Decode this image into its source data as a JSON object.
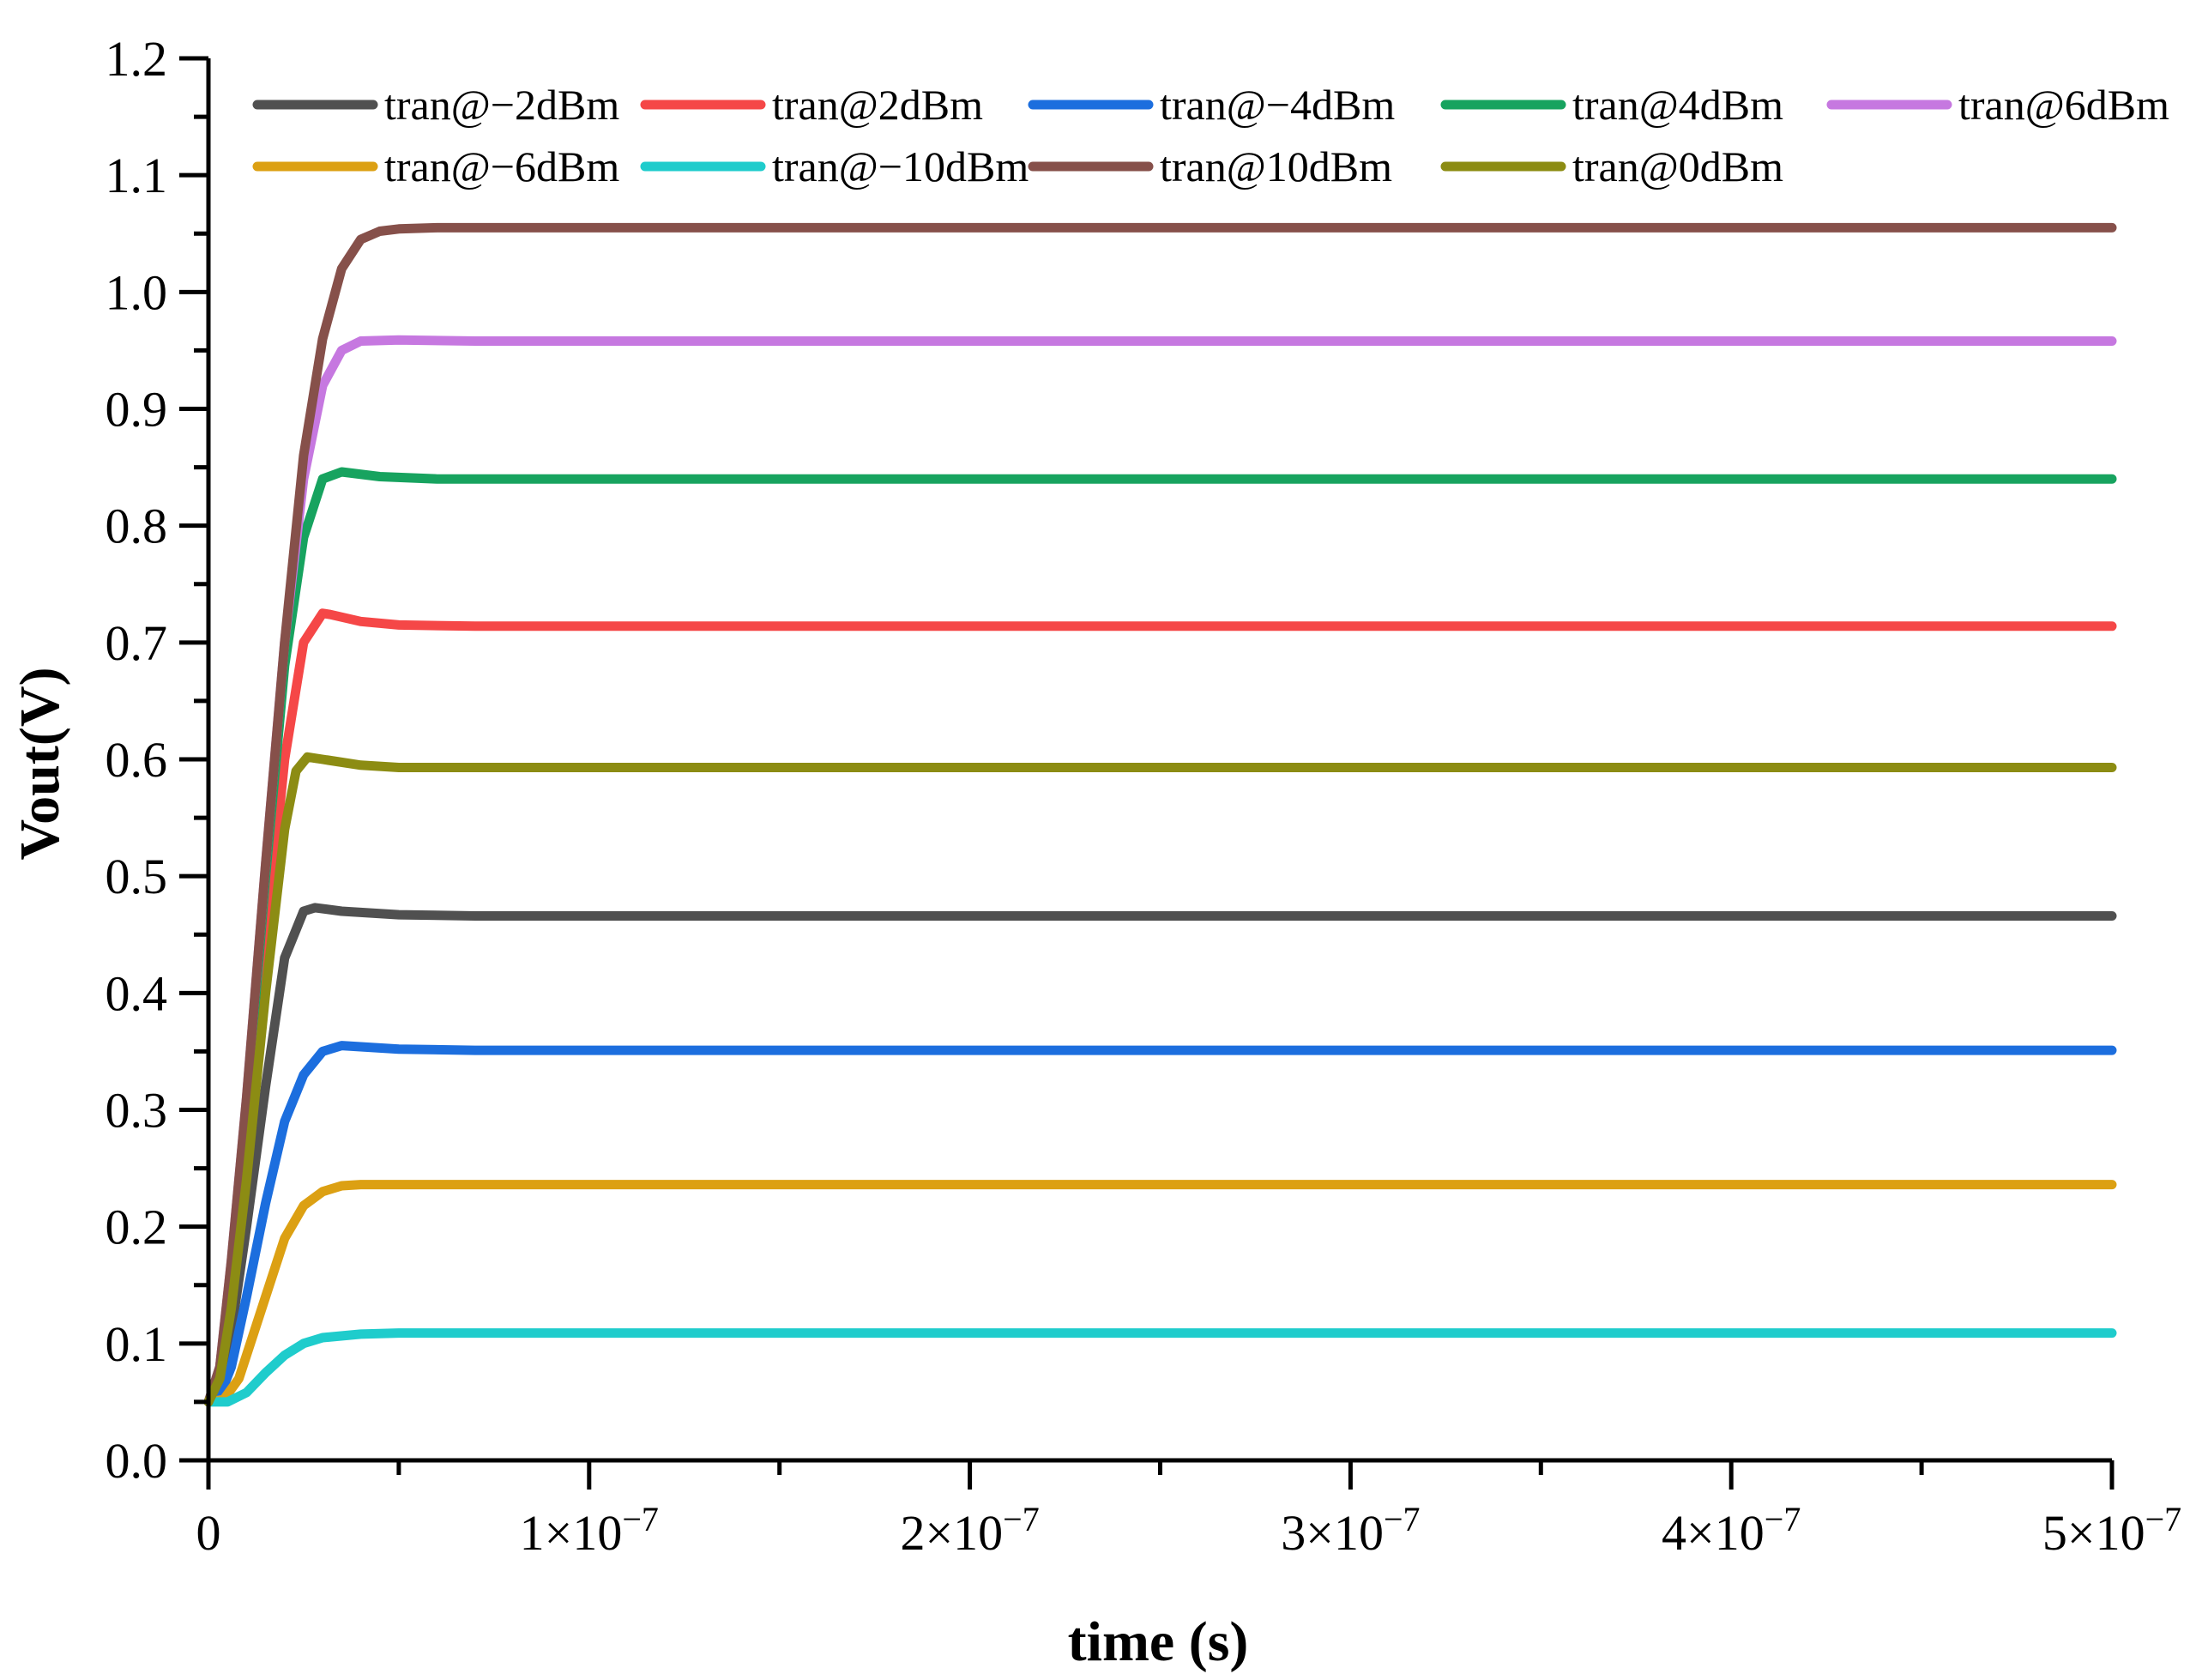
{
  "chart_data": {
    "type": "line",
    "title": "",
    "xlabel": "time (s)",
    "ylabel": "Vout(V)",
    "xlim": [
      0,
      5e-07
    ],
    "ylim": [
      0,
      1.2
    ],
    "grid": false,
    "legend_position": "top",
    "x_ticks": [
      {
        "value": 0,
        "label": "0"
      },
      {
        "value": 1e-07,
        "label": "1×10",
        "exp": "−7"
      },
      {
        "value": 2e-07,
        "label": "2×10",
        "exp": "−7"
      },
      {
        "value": 3e-07,
        "label": "3×10",
        "exp": "−7"
      },
      {
        "value": 4e-07,
        "label": "4×10",
        "exp": "−7"
      },
      {
        "value": 5e-07,
        "label": "5×10",
        "exp": "−7"
      }
    ],
    "y_ticks": [
      {
        "value": 0.0,
        "label": "0.0"
      },
      {
        "value": 0.1,
        "label": "0.1"
      },
      {
        "value": 0.2,
        "label": "0.2"
      },
      {
        "value": 0.3,
        "label": "0.3"
      },
      {
        "value": 0.4,
        "label": "0.4"
      },
      {
        "value": 0.5,
        "label": "0.5"
      },
      {
        "value": 0.6,
        "label": "0.6"
      },
      {
        "value": 0.7,
        "label": "0.7"
      },
      {
        "value": 0.8,
        "label": "0.8"
      },
      {
        "value": 0.9,
        "label": "0.9"
      },
      {
        "value": 1.0,
        "label": "1.0"
      },
      {
        "value": 1.1,
        "label": "1.1"
      },
      {
        "value": 1.2,
        "label": "1.2"
      }
    ],
    "series": [
      {
        "name": "tran@−2dBm",
        "color": "#505050",
        "x": [
          0,
          3e-09,
          6e-09,
          1e-08,
          1.5e-08,
          2e-08,
          2.5e-08,
          2.8e-08,
          3.5e-08,
          5e-08,
          7e-08,
          1e-07,
          2e-07,
          3e-07,
          4e-07,
          5e-07
        ],
        "y": [
          0.05,
          0.06,
          0.11,
          0.2,
          0.32,
          0.43,
          0.47,
          0.473,
          0.47,
          0.467,
          0.466,
          0.466,
          0.466,
          0.466,
          0.466,
          0.466
        ]
      },
      {
        "name": "tran@2dBm",
        "color": "#f54747",
        "x": [
          0,
          3e-09,
          6e-09,
          1e-08,
          1.5e-08,
          2e-08,
          2.5e-08,
          3e-08,
          3.2e-08,
          4e-08,
          5e-08,
          7e-08,
          1e-07,
          2e-07,
          3e-07,
          4e-07,
          5e-07
        ],
        "y": [
          0.05,
          0.07,
          0.14,
          0.27,
          0.44,
          0.6,
          0.7,
          0.725,
          0.724,
          0.718,
          0.715,
          0.714,
          0.714,
          0.714,
          0.714,
          0.714,
          0.714
        ]
      },
      {
        "name": "tran@−4dBm",
        "color": "#1c6ede",
        "x": [
          0,
          3e-09,
          6e-09,
          1e-08,
          1.5e-08,
          2e-08,
          2.5e-08,
          3e-08,
          3.5e-08,
          4e-08,
          5e-08,
          7e-08,
          1e-07,
          2e-07,
          3e-07,
          4e-07,
          5e-07
        ],
        "y": [
          0.05,
          0.055,
          0.08,
          0.14,
          0.22,
          0.29,
          0.33,
          0.35,
          0.355,
          0.354,
          0.352,
          0.351,
          0.351,
          0.351,
          0.351,
          0.351,
          0.351
        ]
      },
      {
        "name": "tran@4dBm",
        "color": "#17a35f",
        "x": [
          0,
          3e-09,
          6e-09,
          1e-08,
          1.5e-08,
          2e-08,
          2.5e-08,
          3e-08,
          3.5e-08,
          4.5e-08,
          6e-08,
          1e-07,
          2e-07,
          3e-07,
          4e-07,
          5e-07
        ],
        "y": [
          0.05,
          0.08,
          0.16,
          0.3,
          0.5,
          0.68,
          0.79,
          0.84,
          0.846,
          0.842,
          0.84,
          0.84,
          0.84,
          0.84,
          0.84,
          0.84
        ]
      },
      {
        "name": "tran@6dBm",
        "color": "#c678e0",
        "x": [
          0,
          3e-09,
          6e-09,
          1e-08,
          1.5e-08,
          2e-08,
          2.5e-08,
          3e-08,
          3.5e-08,
          4e-08,
          5e-08,
          7e-08,
          1e-07,
          2e-07,
          3e-07,
          4e-07,
          5e-07
        ],
        "y": [
          0.05,
          0.08,
          0.17,
          0.31,
          0.51,
          0.7,
          0.84,
          0.92,
          0.95,
          0.958,
          0.959,
          0.958,
          0.958,
          0.958,
          0.958,
          0.958,
          0.958
        ]
      },
      {
        "name": "tran@−6dBm",
        "color": "#dca013",
        "x": [
          0,
          4e-09,
          8e-09,
          1.2e-08,
          1.6e-08,
          2e-08,
          2.5e-08,
          3e-08,
          3.5e-08,
          4e-08,
          5e-08,
          7e-08,
          1e-07,
          2e-07,
          3e-07,
          4e-07,
          5e-07
        ],
        "y": [
          0.05,
          0.052,
          0.07,
          0.11,
          0.15,
          0.19,
          0.218,
          0.23,
          0.235,
          0.236,
          0.236,
          0.236,
          0.236,
          0.236,
          0.236,
          0.236,
          0.236
        ]
      },
      {
        "name": "tran@−10dBm",
        "color": "#1fcccc",
        "x": [
          0,
          5e-09,
          1e-08,
          1.5e-08,
          2e-08,
          2.5e-08,
          3e-08,
          4e-08,
          5e-08,
          7e-08,
          1e-07,
          2e-07,
          3e-07,
          4e-07,
          5e-07
        ],
        "y": [
          0.05,
          0.05,
          0.058,
          0.075,
          0.09,
          0.1,
          0.105,
          0.108,
          0.109,
          0.109,
          0.109,
          0.109,
          0.109,
          0.109,
          0.109
        ]
      },
      {
        "name": "tran@10dBm",
        "color": "#86504a",
        "x": [
          0,
          3e-09,
          6e-09,
          1e-08,
          1.5e-08,
          2e-08,
          2.5e-08,
          3e-08,
          3.5e-08,
          4e-08,
          4.5e-08,
          5e-08,
          6e-08,
          8e-08,
          1e-07,
          2e-07,
          3e-07,
          4e-07,
          5e-07
        ],
        "y": [
          0.05,
          0.08,
          0.17,
          0.31,
          0.51,
          0.7,
          0.86,
          0.96,
          1.02,
          1.045,
          1.052,
          1.054,
          1.055,
          1.055,
          1.055,
          1.055,
          1.055,
          1.055,
          1.055
        ]
      },
      {
        "name": "tran@0dBm",
        "color": "#8c8c13",
        "x": [
          0,
          3e-09,
          6e-09,
          1e-08,
          1.5e-08,
          2e-08,
          2.3e-08,
          2.6e-08,
          3e-08,
          4e-08,
          5e-08,
          7e-08,
          1e-07,
          2e-07,
          3e-07,
          4e-07,
          5e-07
        ],
        "y": [
          0.05,
          0.07,
          0.13,
          0.24,
          0.4,
          0.54,
          0.59,
          0.602,
          0.6,
          0.595,
          0.593,
          0.593,
          0.593,
          0.593,
          0.593,
          0.593,
          0.593
        ]
      }
    ]
  }
}
